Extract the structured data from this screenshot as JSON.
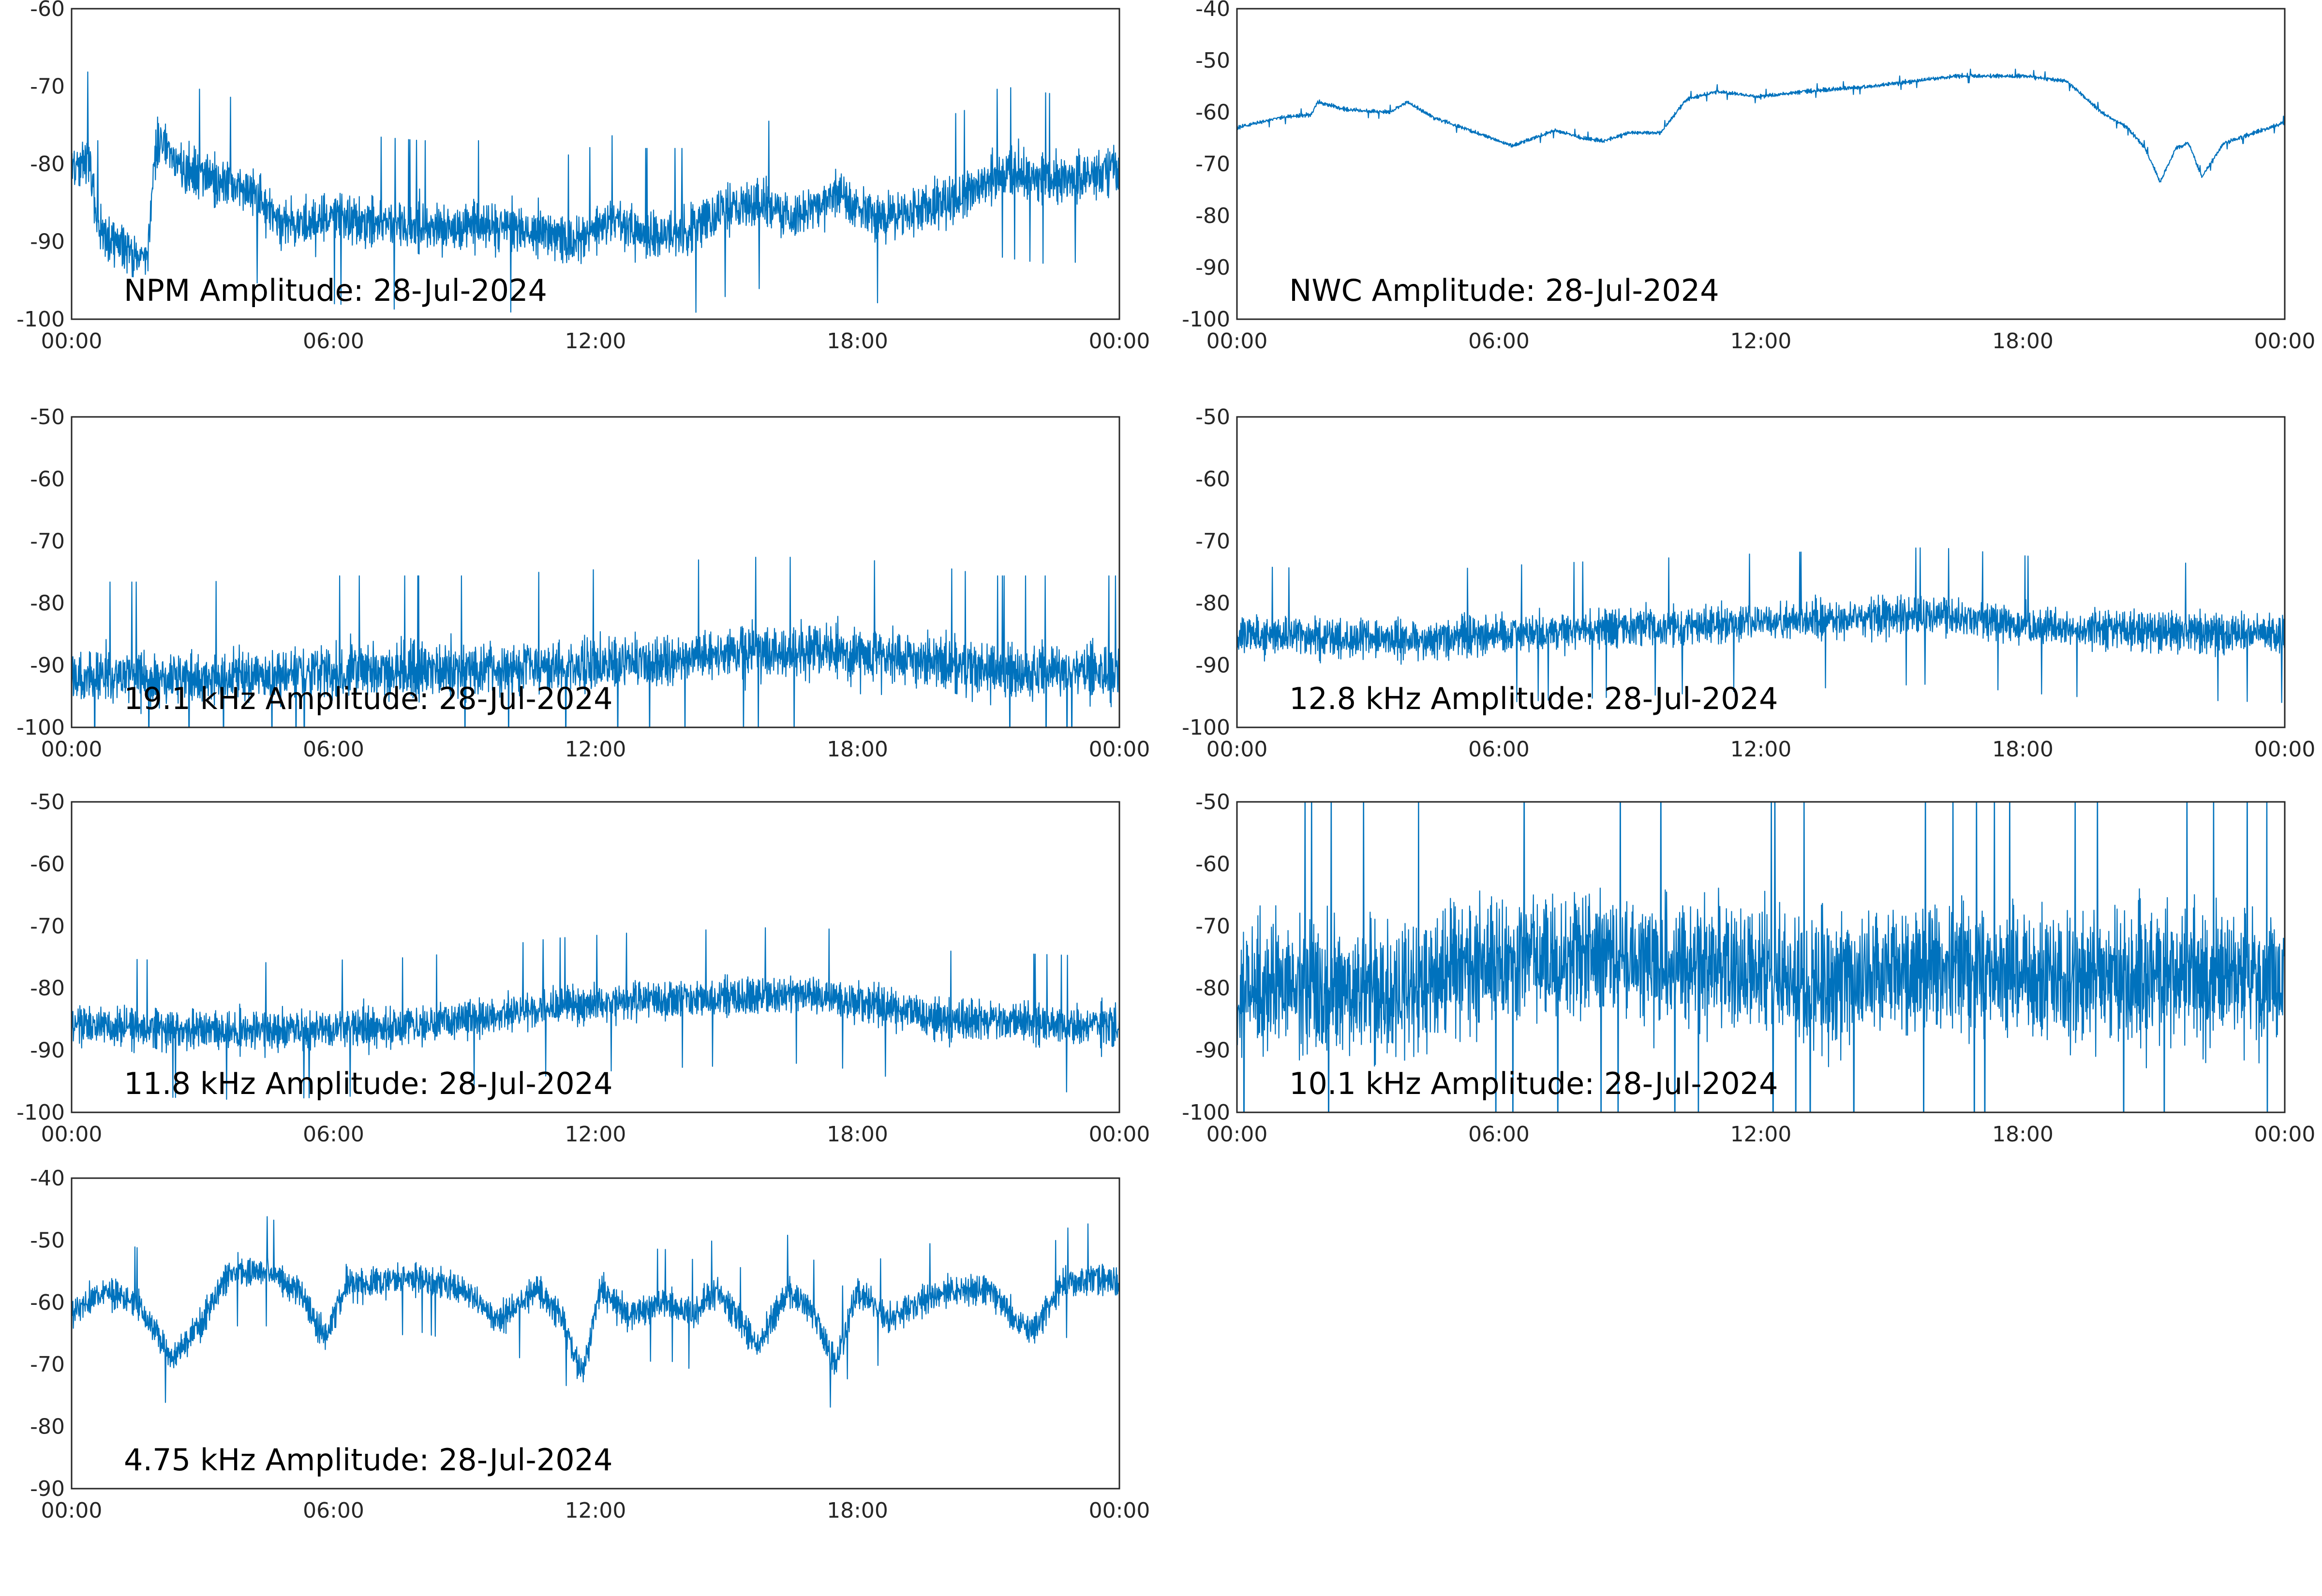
{
  "series_color": "#0072BD",
  "chart_data": [
    {
      "type": "line",
      "title": "NPM Amplitude: 28-Jul-2024",
      "xlabel": "",
      "ylabel": "",
      "x_tick_labels": [
        "00:00",
        "06:00",
        "12:00",
        "18:00",
        "00:00"
      ],
      "xlim_hours": [
        0,
        24
      ],
      "ylim": [
        -100,
        -60
      ],
      "y_ticks": [
        -100,
        -90,
        -80,
        -70,
        -60
      ],
      "grid": false,
      "noise_amplitude": 5,
      "envelope": [
        [
          0,
          -81
        ],
        [
          0.4,
          -79
        ],
        [
          0.6,
          -88
        ],
        [
          1.0,
          -90
        ],
        [
          1.4,
          -92
        ],
        [
          1.75,
          -92
        ],
        [
          1.9,
          -79
        ],
        [
          2.05,
          -77
        ],
        [
          2.6,
          -81
        ],
        [
          3.5,
          -82
        ],
        [
          4.2,
          -84
        ],
        [
          4.8,
          -88
        ],
        [
          6.0,
          -87
        ],
        [
          8.0,
          -88
        ],
        [
          10.0,
          -88
        ],
        [
          11.5,
          -90
        ],
        [
          12.5,
          -87
        ],
        [
          13.0,
          -89
        ],
        [
          14.0,
          -89
        ],
        [
          15.0,
          -86
        ],
        [
          15.8,
          -85
        ],
        [
          16.5,
          -87
        ],
        [
          17.5,
          -84
        ],
        [
          18.5,
          -87
        ],
        [
          19.5,
          -86
        ],
        [
          20.5,
          -84
        ],
        [
          21.3,
          -81
        ],
        [
          22.5,
          -82
        ],
        [
          24,
          -81
        ]
      ]
    },
    {
      "type": "line",
      "title": "NWC Amplitude: 28-Jul-2024",
      "xlabel": "",
      "ylabel": "",
      "x_tick_labels": [
        "00:00",
        "06:00",
        "12:00",
        "18:00",
        "00:00"
      ],
      "xlim_hours": [
        0,
        24
      ],
      "ylim": [
        -100,
        -40
      ],
      "y_ticks": [
        -100,
        -90,
        -80,
        -70,
        -60,
        -50,
        -40
      ],
      "grid": false,
      "noise_amplitude": 0.6,
      "envelope": [
        [
          0,
          -63
        ],
        [
          1.0,
          -61
        ],
        [
          1.7,
          -60.5
        ],
        [
          1.85,
          -58
        ],
        [
          2.5,
          -59.5
        ],
        [
          3.5,
          -60
        ],
        [
          3.9,
          -58
        ],
        [
          4.5,
          -61
        ],
        [
          5.5,
          -64
        ],
        [
          6.3,
          -66.5
        ],
        [
          6.8,
          -65
        ],
        [
          7.3,
          -63.5
        ],
        [
          7.9,
          -65
        ],
        [
          8.4,
          -65.5
        ],
        [
          9.0,
          -64
        ],
        [
          9.7,
          -64
        ],
        [
          10.3,
          -57.5
        ],
        [
          11.0,
          -56
        ],
        [
          12.0,
          -57
        ],
        [
          13.0,
          -56
        ],
        [
          14.5,
          -55
        ],
        [
          16.5,
          -53
        ],
        [
          18.0,
          -53
        ],
        [
          19.0,
          -54
        ],
        [
          19.8,
          -60
        ],
        [
          20.4,
          -63
        ],
        [
          20.8,
          -67
        ],
        [
          21.15,
          -73.5
        ],
        [
          21.5,
          -67
        ],
        [
          21.8,
          -66
        ],
        [
          22.1,
          -72.5
        ],
        [
          22.6,
          -66
        ],
        [
          23.3,
          -64
        ],
        [
          24,
          -62
        ]
      ]
    },
    {
      "type": "line",
      "title": "19.1 kHz Amplitude: 28-Jul-2024",
      "xlabel": "",
      "ylabel": "",
      "x_tick_labels": [
        "00:00",
        "06:00",
        "12:00",
        "18:00",
        "00:00"
      ],
      "xlim_hours": [
        0,
        24
      ],
      "ylim": [
        -100,
        -50
      ],
      "y_ticks": [
        -100,
        -90,
        -80,
        -70,
        -60,
        -50
      ],
      "grid": false,
      "noise_amplitude": 7,
      "envelope": [
        [
          0,
          -92
        ],
        [
          3,
          -92
        ],
        [
          6,
          -91
        ],
        [
          9,
          -91
        ],
        [
          12,
          -90
        ],
        [
          15,
          -88
        ],
        [
          17,
          -88
        ],
        [
          19.5,
          -89
        ],
        [
          21,
          -91
        ],
        [
          24,
          -91
        ]
      ]
    },
    {
      "type": "line",
      "title": "12.8 kHz Amplitude: 28-Jul-2024",
      "xlabel": "",
      "ylabel": "",
      "x_tick_labels": [
        "00:00",
        "06:00",
        "12:00",
        "18:00",
        "00:00"
      ],
      "xlim_hours": [
        0,
        24
      ],
      "ylim": [
        -100,
        -50
      ],
      "y_ticks": [
        -100,
        -90,
        -80,
        -70,
        -60,
        -50
      ],
      "grid": false,
      "noise_amplitude": 5,
      "envelope": [
        [
          0,
          -85
        ],
        [
          4,
          -86
        ],
        [
          6,
          -85
        ],
        [
          9,
          -84
        ],
        [
          12,
          -83
        ],
        [
          16,
          -82
        ],
        [
          19,
          -84
        ],
        [
          24,
          -85
        ]
      ]
    },
    {
      "type": "line",
      "title": "11.8 kHz Amplitude: 28-Jul-2024",
      "xlabel": "",
      "ylabel": "",
      "x_tick_labels": [
        "00:00",
        "06:00",
        "12:00",
        "18:00",
        "00:00"
      ],
      "xlim_hours": [
        0,
        24
      ],
      "ylim": [
        -100,
        -50
      ],
      "y_ticks": [
        -100,
        -90,
        -80,
        -70,
        -60,
        -50
      ],
      "grid": false,
      "noise_amplitude": 5,
      "envelope": [
        [
          0,
          -86
        ],
        [
          4,
          -87
        ],
        [
          8,
          -86
        ],
        [
          11,
          -83
        ],
        [
          13,
          -82
        ],
        [
          17,
          -81
        ],
        [
          20,
          -85
        ],
        [
          24,
          -86
        ]
      ]
    },
    {
      "type": "line",
      "title": "10.1 kHz Amplitude: 28-Jul-2024",
      "xlabel": "",
      "ylabel": "",
      "x_tick_labels": [
        "00:00",
        "06:00",
        "12:00",
        "18:00",
        "00:00"
      ],
      "xlim_hours": [
        0,
        24
      ],
      "ylim": [
        -100,
        -50
      ],
      "y_ticks": [
        -100,
        -90,
        -80,
        -70,
        -60,
        -50
      ],
      "grid": false,
      "noise_amplitude": 17,
      "envelope": [
        [
          0,
          -80
        ],
        [
          4.5,
          -80
        ],
        [
          5,
          -76
        ],
        [
          8,
          -75
        ],
        [
          11,
          -76
        ],
        [
          13,
          -79
        ],
        [
          16,
          -77
        ],
        [
          19,
          -78
        ],
        [
          24,
          -78
        ]
      ]
    },
    {
      "type": "line",
      "title": "4.75 kHz Amplitude: 28-Jul-2024",
      "xlabel": "",
      "ylabel": "",
      "x_tick_labels": [
        "00:00",
        "06:00",
        "12:00",
        "18:00",
        "00:00"
      ],
      "xlim_hours": [
        0,
        24
      ],
      "ylim": [
        -90,
        -40
      ],
      "y_ticks": [
        -90,
        -80,
        -70,
        -60,
        -50,
        -40
      ],
      "grid": false,
      "noise_amplitude": 4,
      "envelope": [
        [
          0,
          -62
        ],
        [
          0.7,
          -58
        ],
        [
          1.5,
          -60
        ],
        [
          2.3,
          -69
        ],
        [
          3.0,
          -63
        ],
        [
          3.6,
          -55
        ],
        [
          4.5,
          -55
        ],
        [
          5.2,
          -58
        ],
        [
          5.8,
          -66
        ],
        [
          6.3,
          -57
        ],
        [
          7.0,
          -57
        ],
        [
          8.0,
          -56
        ],
        [
          9.0,
          -58
        ],
        [
          9.8,
          -63
        ],
        [
          10.6,
          -58
        ],
        [
          11.2,
          -62
        ],
        [
          11.7,
          -72
        ],
        [
          12.1,
          -58
        ],
        [
          12.8,
          -62
        ],
        [
          13.5,
          -60
        ],
        [
          14.2,
          -62
        ],
        [
          14.8,
          -58
        ],
        [
          15.7,
          -67
        ],
        [
          16.4,
          -58
        ],
        [
          17.0,
          -62
        ],
        [
          17.5,
          -70
        ],
        [
          18.0,
          -58
        ],
        [
          18.7,
          -63
        ],
        [
          19.4,
          -60
        ],
        [
          20.2,
          -58
        ],
        [
          21.0,
          -58
        ],
        [
          22.0,
          -65
        ],
        [
          22.7,
          -57
        ],
        [
          23.4,
          -56
        ],
        [
          24,
          -57
        ]
      ]
    }
  ]
}
